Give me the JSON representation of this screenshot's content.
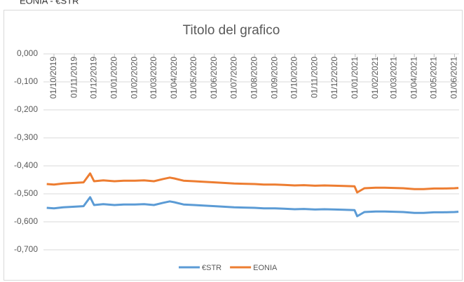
{
  "header": "EONIA - €STR",
  "chart_data": {
    "type": "line",
    "title": "Titolo del grafico",
    "x": [
      "20/09/2019",
      "01/10/2019",
      "15/10/2019",
      "01/11/2019",
      "15/11/2019",
      "25/11/2019",
      "01/12/2019",
      "15/12/2019",
      "01/01/2020",
      "15/01/2020",
      "01/02/2020",
      "15/02/2020",
      "01/03/2020",
      "15/03/2020",
      "25/03/2020",
      "01/04/2020",
      "15/04/2020",
      "01/05/2020",
      "15/05/2020",
      "01/06/2020",
      "15/06/2020",
      "01/07/2020",
      "15/07/2020",
      "01/08/2020",
      "15/08/2020",
      "01/09/2020",
      "15/09/2020",
      "01/10/2020",
      "15/10/2020",
      "01/11/2020",
      "15/11/2020",
      "01/12/2020",
      "15/12/2020",
      "31/12/2020",
      "04/01/2021",
      "15/01/2021",
      "01/02/2021",
      "15/02/2021",
      "01/03/2021",
      "15/03/2021",
      "01/04/2021",
      "15/04/2021",
      "01/05/2021",
      "15/05/2021",
      "01/06/2021",
      "07/06/2021"
    ],
    "series": [
      {
        "name": "€STR",
        "color": "#5b9bd5",
        "values": [
          -0.55,
          -0.552,
          -0.548,
          -0.546,
          -0.544,
          -0.512,
          -0.54,
          -0.537,
          -0.54,
          -0.538,
          -0.538,
          -0.537,
          -0.54,
          -0.532,
          -0.527,
          -0.53,
          -0.538,
          -0.54,
          -0.542,
          -0.544,
          -0.546,
          -0.548,
          -0.549,
          -0.55,
          -0.552,
          -0.552,
          -0.553,
          -0.555,
          -0.554,
          -0.556,
          -0.555,
          -0.556,
          -0.557,
          -0.558,
          -0.58,
          -0.565,
          -0.563,
          -0.563,
          -0.564,
          -0.565,
          -0.568,
          -0.568,
          -0.566,
          -0.566,
          -0.565,
          -0.564
        ]
      },
      {
        "name": "EONIA",
        "color": "#ed7d31",
        "values": [
          -0.465,
          -0.467,
          -0.463,
          -0.461,
          -0.459,
          -0.427,
          -0.455,
          -0.452,
          -0.455,
          -0.453,
          -0.453,
          -0.452,
          -0.455,
          -0.447,
          -0.442,
          -0.445,
          -0.453,
          -0.455,
          -0.457,
          -0.459,
          -0.461,
          -0.463,
          -0.464,
          -0.465,
          -0.467,
          -0.467,
          -0.468,
          -0.47,
          -0.469,
          -0.471,
          -0.47,
          -0.471,
          -0.472,
          -0.473,
          -0.495,
          -0.48,
          -0.478,
          -0.478,
          -0.479,
          -0.48,
          -0.483,
          -0.483,
          -0.481,
          -0.481,
          -0.48,
          -0.479
        ]
      }
    ],
    "xlim": [
      "15/09/2019",
      "08/06/2021"
    ],
    "xticks": [
      "01/10/2019",
      "01/11/2019",
      "01/12/2019",
      "01/01/2020",
      "01/02/2020",
      "01/03/2020",
      "01/04/2020",
      "01/05/2020",
      "01/06/2020",
      "01/07/2020",
      "01/08/2020",
      "01/09/2020",
      "01/10/2020",
      "01/11/2020",
      "01/12/2020",
      "01/01/2021",
      "01/02/2021",
      "01/03/2021",
      "01/04/2021",
      "01/05/2021",
      "01/06/2021"
    ],
    "ylim": [
      -0.7,
      0
    ],
    "yticks": [
      {
        "value": 0,
        "label": "0,000"
      },
      {
        "value": -0.1,
        "label": "-0,100"
      },
      {
        "value": -0.2,
        "label": "-0,200"
      },
      {
        "value": -0.3,
        "label": "-0,300"
      },
      {
        "value": -0.4,
        "label": "-0,400"
      },
      {
        "value": -0.5,
        "label": "-0,500"
      },
      {
        "value": -0.6,
        "label": "-0,600"
      },
      {
        "value": -0.7,
        "label": "-0,700"
      }
    ],
    "grid": true,
    "legend": "bottom"
  }
}
